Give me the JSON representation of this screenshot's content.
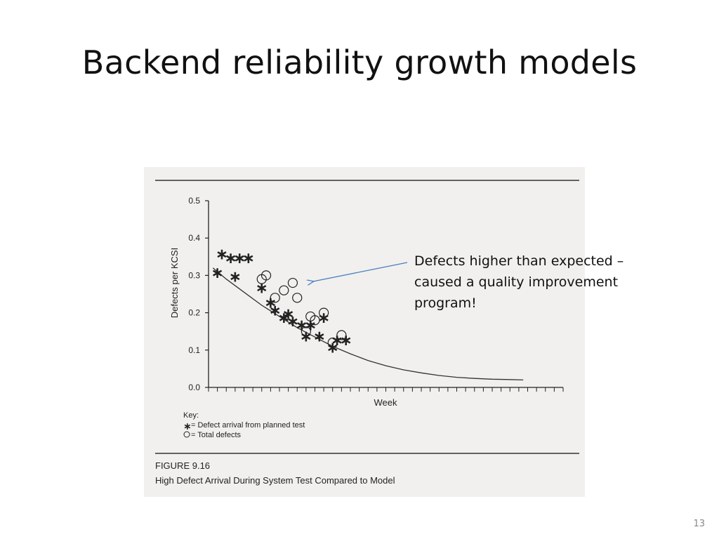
{
  "slide": {
    "title": "Backend reliability growth models",
    "number": "13"
  },
  "callout": {
    "text": "Defects higher than expected – caused a quality improvement program!"
  },
  "figure": {
    "number_label": "FIGURE 9.16",
    "caption": "High Defect Arrival During System Test Compared to Model",
    "key_title": "Key:",
    "key_items": [
      {
        "symbol": "star",
        "text": "= Defect arrival from planned test"
      },
      {
        "symbol": "circle",
        "text": "= Total defects"
      }
    ]
  },
  "chart_data": {
    "type": "scatter",
    "xlabel": "Week",
    "ylabel": "Defects per KCSI",
    "ylim": [
      0,
      0.5
    ],
    "yticks": [
      "0.0",
      "0.1",
      "0.2",
      "0.3",
      "0.4",
      "0.5"
    ],
    "xlim": [
      0,
      40
    ],
    "xticks_count": 40,
    "series": [
      {
        "name": "Defect arrival from planned test",
        "marker": "star",
        "points": [
          [
            1,
            0.31
          ],
          [
            1.5,
            0.36
          ],
          [
            2.5,
            0.35
          ],
          [
            3.5,
            0.35
          ],
          [
            4.5,
            0.35
          ],
          [
            3,
            0.3
          ],
          [
            6,
            0.27
          ],
          [
            7,
            0.23
          ],
          [
            7.5,
            0.21
          ],
          [
            8.5,
            0.19
          ],
          [
            9,
            0.2
          ],
          [
            9.5,
            0.18
          ],
          [
            10.5,
            0.17
          ],
          [
            11,
            0.14
          ],
          [
            11.5,
            0.17
          ],
          [
            12.5,
            0.14
          ],
          [
            13,
            0.19
          ],
          [
            14,
            0.11
          ],
          [
            14.5,
            0.13
          ],
          [
            15.5,
            0.13
          ]
        ]
      },
      {
        "name": "Total defects",
        "marker": "circle",
        "points": [
          [
            6,
            0.29
          ],
          [
            6.5,
            0.3
          ],
          [
            7.5,
            0.24
          ],
          [
            8.5,
            0.26
          ],
          [
            9.5,
            0.28
          ],
          [
            10,
            0.24
          ],
          [
            11,
            0.15
          ],
          [
            11.5,
            0.19
          ],
          [
            12,
            0.18
          ],
          [
            13,
            0.2
          ],
          [
            14,
            0.12
          ],
          [
            15,
            0.14
          ]
        ]
      },
      {
        "name": "Model",
        "type": "line",
        "points": [
          [
            0.5,
            0.32
          ],
          [
            2,
            0.29
          ],
          [
            4,
            0.255
          ],
          [
            6,
            0.22
          ],
          [
            8,
            0.19
          ],
          [
            10,
            0.16
          ],
          [
            12,
            0.135
          ],
          [
            14,
            0.11
          ],
          [
            16,
            0.09
          ],
          [
            18,
            0.072
          ],
          [
            20,
            0.058
          ],
          [
            22,
            0.047
          ],
          [
            24,
            0.039
          ],
          [
            26,
            0.032
          ],
          [
            28,
            0.027
          ],
          [
            30,
            0.024
          ],
          [
            32,
            0.022
          ],
          [
            34,
            0.021
          ],
          [
            35.5,
            0.02
          ]
        ]
      }
    ],
    "grid": false,
    "legend": "bottom-left"
  },
  "colors": {
    "figure_background": "#f1f0ee",
    "ink": "#222222",
    "callout_arrow": "#4a7fc0"
  }
}
